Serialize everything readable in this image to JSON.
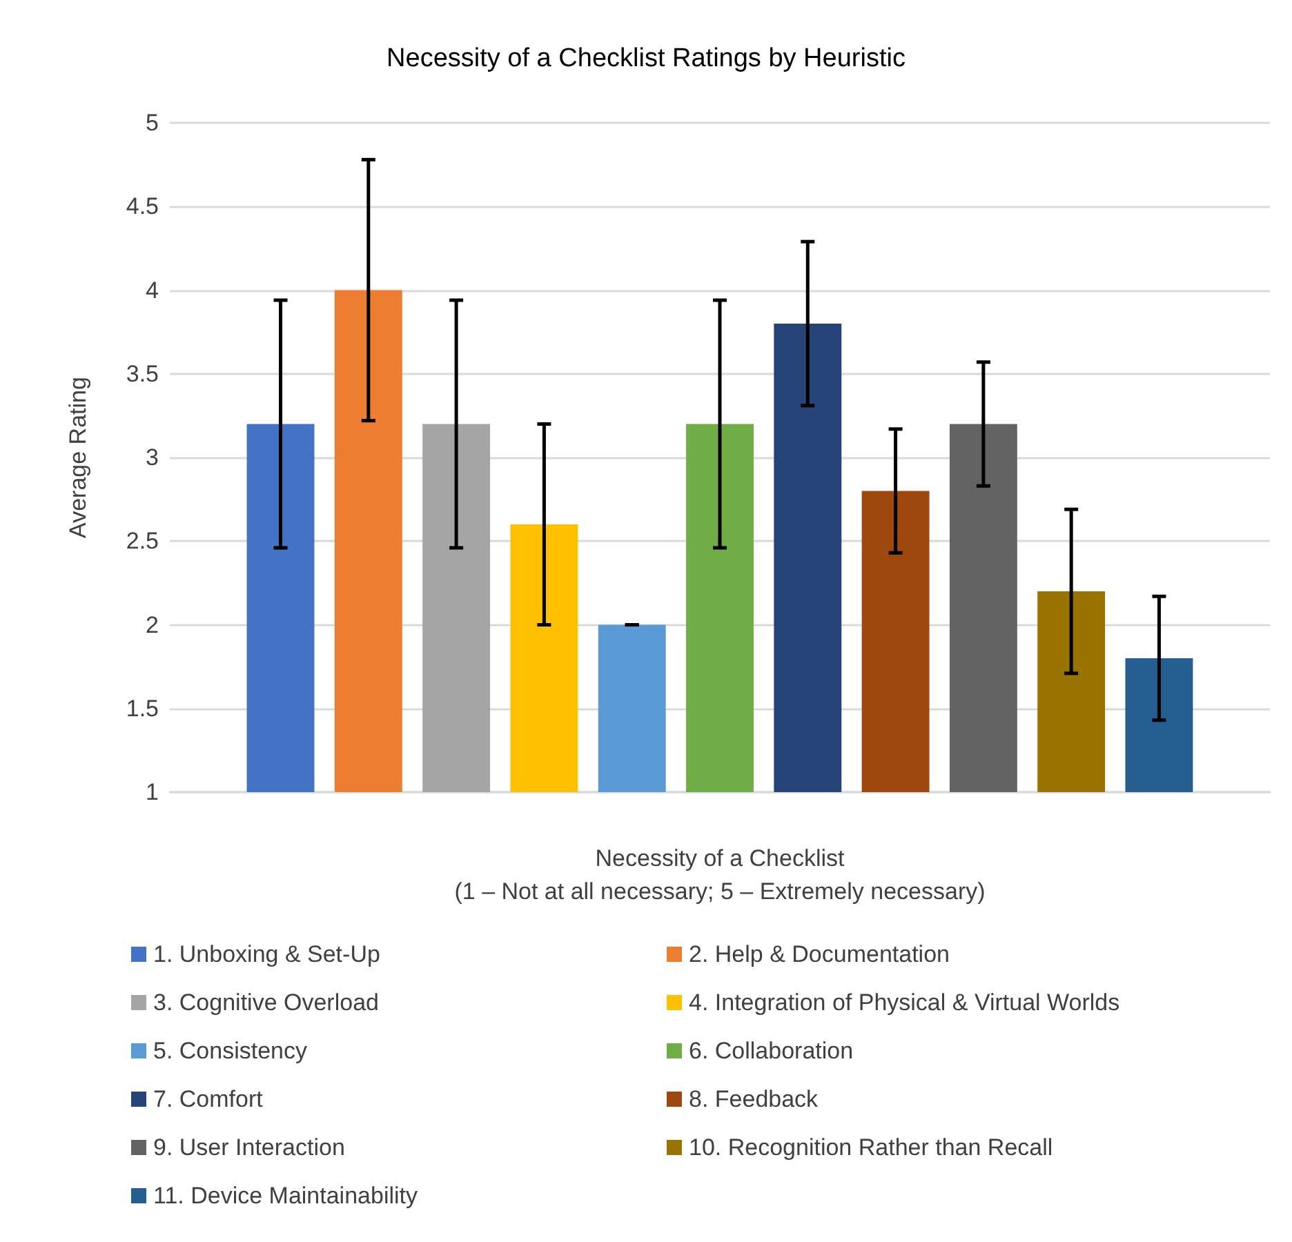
{
  "chart_data": {
    "type": "bar",
    "title": "Necessity of a Checklist Ratings by Heuristic",
    "xlabel": "Necessity of a Checklist\n(1 – Not at all necessary; 5 – Extremely necessary)",
    "ylabel": "Average Rating",
    "categories": [
      null
    ],
    "series": [
      {
        "name": "1. Unboxing & Set-Up",
        "color": "#4472c4",
        "values": [
          3.2
        ],
        "errors": [
          0.74
        ]
      },
      {
        "name": "2. Help & Documentation",
        "color": "#ed7d31",
        "values": [
          4.0
        ],
        "errors": [
          0.78
        ]
      },
      {
        "name": "3. Cognitive Overload",
        "color": "#a5a5a5",
        "values": [
          3.2
        ],
        "errors": [
          0.74
        ]
      },
      {
        "name": "4. Integration of Physical & Virtual Worlds",
        "color": "#ffc000",
        "values": [
          2.6
        ],
        "errors": [
          0.6
        ]
      },
      {
        "name": "5. Consistency",
        "color": "#5b9bd5",
        "values": [
          2.0
        ],
        "errors": [
          0
        ]
      },
      {
        "name": "6. Collaboration",
        "color": "#70ad47",
        "values": [
          3.2
        ],
        "errors": [
          0.74
        ]
      },
      {
        "name": "7. Comfort",
        "color": "#264478",
        "values": [
          3.8
        ],
        "errors": [
          0.49
        ]
      },
      {
        "name": "8. Feedback",
        "color": "#9e480e",
        "values": [
          2.8
        ],
        "errors": [
          0.37
        ]
      },
      {
        "name": "9. User Interaction",
        "color": "#636363",
        "values": [
          3.2
        ],
        "errors": [
          0.37
        ]
      },
      {
        "name": "10. Recognition Rather than Recall",
        "color": "#997300",
        "values": [
          2.2
        ],
        "errors": [
          0.49
        ]
      },
      {
        "name": "11. Device Maintainability",
        "color": "#255e91",
        "values": [
          1.8
        ],
        "errors": [
          0.37
        ]
      }
    ],
    "ylim": [
      1,
      5
    ],
    "yticks": [
      1,
      1.5,
      2,
      2.5,
      3,
      3.5,
      4,
      4.5,
      5
    ],
    "grid": "y",
    "legend": "bottom"
  }
}
